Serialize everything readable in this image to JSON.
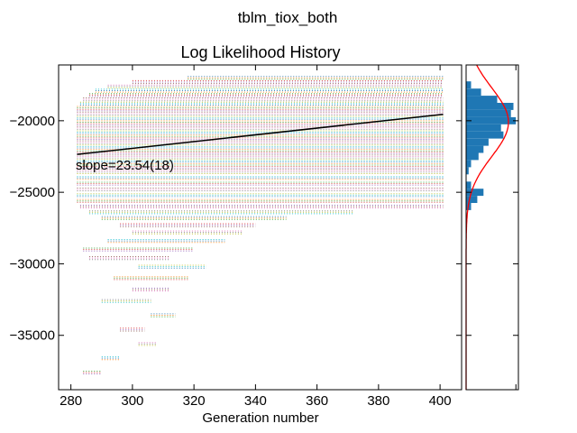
{
  "chart_data": [
    {
      "type": "scatter",
      "suptitle": "tblm_tiox_both",
      "title": "Log Likelihood History",
      "xlabel": "Generation number",
      "ylabel": "",
      "xlim": [
        276,
        407
      ],
      "ylim": [
        -38800,
        -16100
      ],
      "x_ticks": [
        280,
        300,
        320,
        340,
        360,
        380,
        400
      ],
      "y_ticks": [
        -20000,
        -25000,
        -30000,
        -35000
      ],
      "x_tick_labels": [
        "280",
        "300",
        "320",
        "340",
        "360",
        "380",
        "400"
      ],
      "y_tick_labels": [
        "−20000",
        "−25000",
        "−30000",
        "−35000"
      ],
      "generation_range": [
        282,
        401
      ],
      "population_traces": {
        "note_series": "many chains, each a horizontal dotted trace of log likelihood over generations",
        "levels": [
          -17000,
          -17300,
          -17600,
          -17900,
          -18200,
          -18500,
          -18800,
          -19100,
          -19400,
          -19700,
          -20000,
          -20300,
          -20600,
          -20900,
          -21200,
          -21500,
          -21800,
          -22100,
          -22400,
          -22700,
          -23000,
          -23300,
          -23600,
          -24000,
          -24400,
          -24800,
          -25200,
          -25600,
          -26000,
          -26400,
          -26800,
          -27300,
          -27800,
          -28400,
          -29000,
          -29600,
          -30200,
          -31000,
          -31800,
          -32600,
          -33600,
          -34600,
          -35600,
          -36600,
          -37600
        ],
        "start_generation": [
          318,
          300,
          292,
          288,
          286,
          284,
          283,
          282,
          282,
          282,
          282,
          282,
          282,
          282,
          282,
          282,
          282,
          282,
          282,
          282,
          282,
          282,
          282,
          282,
          282,
          282,
          282,
          282,
          283,
          286,
          290,
          296,
          300,
          292,
          284,
          286,
          302,
          294,
          300,
          290,
          306,
          296,
          302,
          290,
          284
        ],
        "end_generation": [
          401,
          401,
          401,
          401,
          401,
          401,
          401,
          401,
          401,
          401,
          401,
          401,
          401,
          401,
          401,
          401,
          401,
          401,
          401,
          401,
          401,
          401,
          401,
          401,
          401,
          401,
          401,
          401,
          401,
          372,
          350,
          340,
          336,
          330,
          320,
          312,
          324,
          318,
          312,
          306,
          314,
          304,
          308,
          296,
          290
        ],
        "colors": [
          "#1f77b4",
          "#ff7f0e",
          "#2ca02c",
          "#d62728",
          "#9467bd",
          "#8c564b",
          "#e377c2",
          "#7f7f7f",
          "#bcbd22",
          "#17becf"
        ]
      },
      "trend_line": {
        "x": [
          282,
          401
        ],
        "y": [
          -22350,
          -19550
        ],
        "color": "#000000"
      },
      "annotation": "slope=23.54(18)"
    },
    {
      "type": "histogram",
      "orientation": "horizontal",
      "ylim": [
        -38800,
        -16100
      ],
      "xlim": [
        0,
        0.00042
      ],
      "x_ticks": [
        0,
        0.0004
      ],
      "bar_color": "#1f77b4",
      "curve_color": "#ff0000",
      "bins": [
        {
          "y": -17500,
          "count": 4e-05
        },
        {
          "y": -18000,
          "count": 0.00012
        },
        {
          "y": -18500,
          "count": 0.00025
        },
        {
          "y": -19000,
          "count": 0.00038
        },
        {
          "y": -19500,
          "count": 0.00036
        },
        {
          "y": -20000,
          "count": 0.0004
        },
        {
          "y": -20500,
          "count": 0.00028
        },
        {
          "y": -21000,
          "count": 0.0003
        },
        {
          "y": -21500,
          "count": 0.00018
        },
        {
          "y": -22000,
          "count": 0.00014
        },
        {
          "y": -22500,
          "count": 0.0001
        },
        {
          "y": -23000,
          "count": 4e-05
        },
        {
          "y": -23500,
          "count": 2e-05
        },
        {
          "y": -24500,
          "count": 4e-05
        },
        {
          "y": -25000,
          "count": 0.00014
        },
        {
          "y": -25500,
          "count": 9e-05
        },
        {
          "y": -26000,
          "count": 4e-05
        }
      ],
      "normal_fit": {
        "mean": -20100,
        "sd": 2400,
        "peak": 0.00034
      }
    }
  ]
}
